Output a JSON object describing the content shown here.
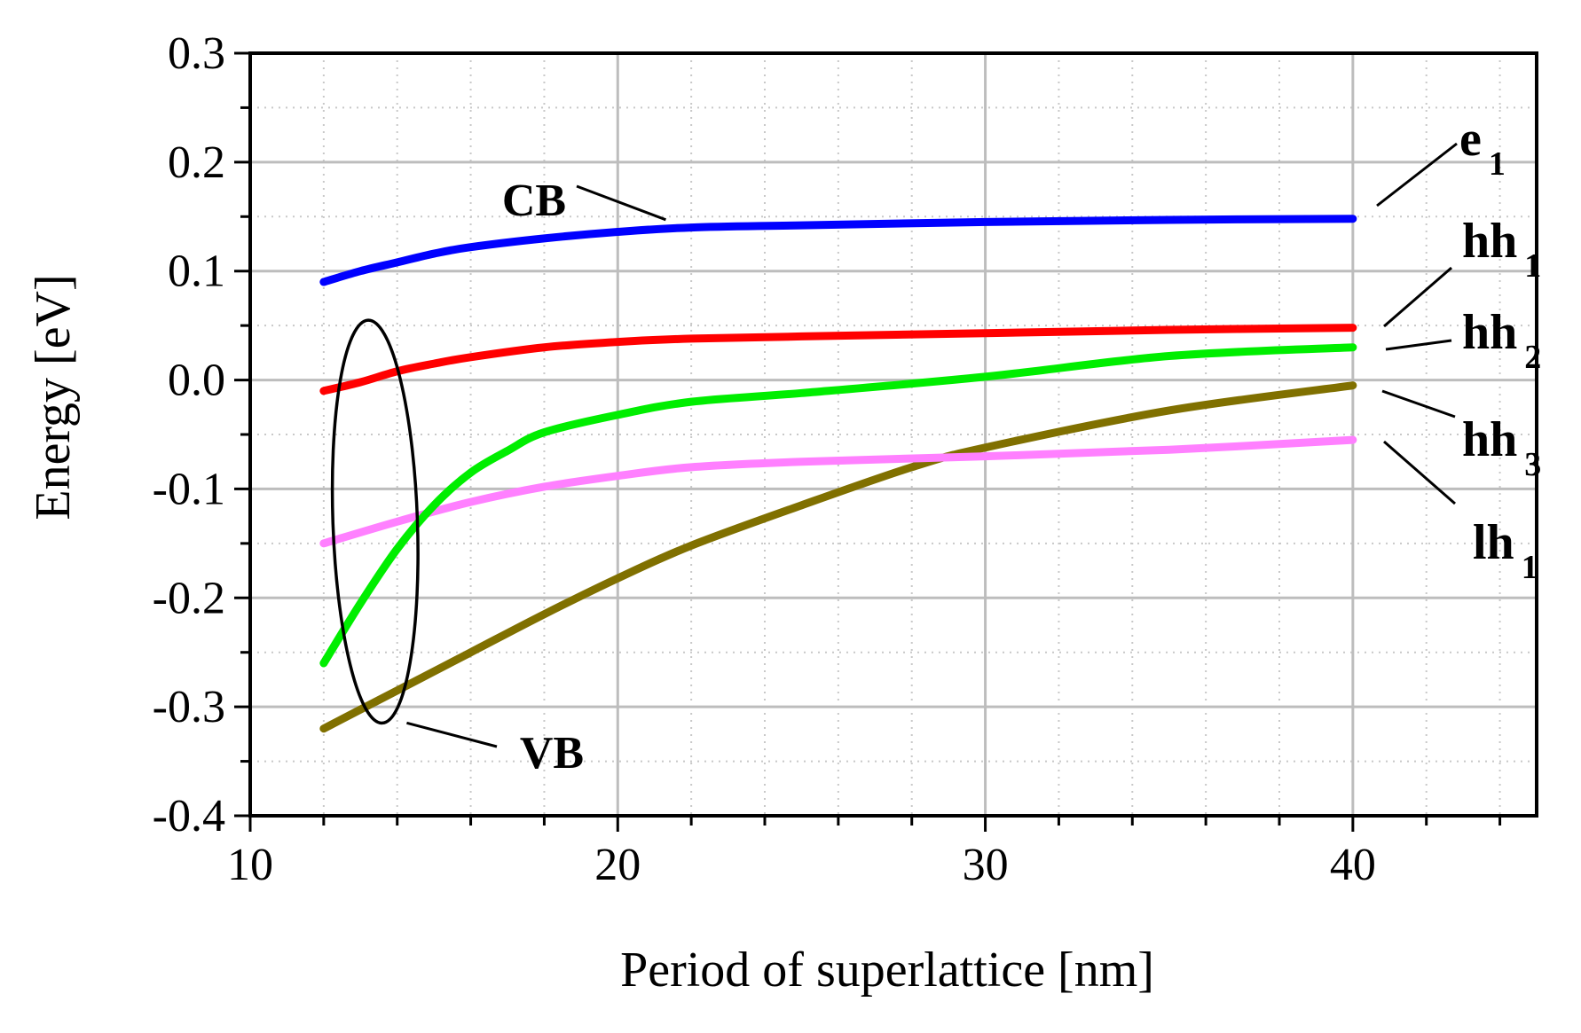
{
  "chart_data": {
    "type": "line",
    "title": "",
    "xlabel": "Period of superlattice [nm]",
    "ylabel": "Energy [eV]",
    "xlim": [
      10,
      45
    ],
    "ylim": [
      -0.4,
      0.3
    ],
    "x_ticks": [
      10,
      20,
      30,
      40
    ],
    "y_ticks": [
      0.3,
      0.2,
      0.1,
      0.0,
      -0.1,
      -0.2,
      -0.3,
      -0.4
    ],
    "x_tick_labels": [
      "10",
      "20",
      "30",
      "40"
    ],
    "y_tick_labels": [
      "0.3",
      "0.2",
      "0.1",
      "0.0",
      "-0.1",
      "-0.2",
      "-0.3",
      "-0.4"
    ],
    "grid": true,
    "series": [
      {
        "name": "e1",
        "label_main": "e",
        "label_sub": "1",
        "color": "#0000ff",
        "x": [
          12,
          13,
          14,
          15,
          16,
          18,
          20,
          22,
          25,
          30,
          35,
          40
        ],
        "y": [
          0.09,
          0.1,
          0.108,
          0.116,
          0.122,
          0.13,
          0.136,
          0.14,
          0.142,
          0.145,
          0.147,
          0.148
        ]
      },
      {
        "name": "hh1",
        "label_main": "hh",
        "label_sub": "1",
        "color": "#ff0000",
        "x": [
          12,
          13,
          14,
          15,
          16,
          18,
          20,
          22,
          25,
          30,
          35,
          40
        ],
        "y": [
          -0.01,
          -0.002,
          0.008,
          0.015,
          0.021,
          0.03,
          0.035,
          0.038,
          0.04,
          0.043,
          0.046,
          0.048
        ]
      },
      {
        "name": "hh2",
        "label_main": "hh",
        "label_sub": "2",
        "color": "#00ee00",
        "x": [
          12,
          13,
          14,
          15,
          16,
          17,
          18,
          20,
          22,
          25,
          30,
          35,
          40
        ],
        "y": [
          -0.26,
          -0.205,
          -0.155,
          -0.115,
          -0.085,
          -0.065,
          -0.048,
          -0.032,
          -0.02,
          -0.012,
          0.003,
          0.022,
          0.03
        ]
      },
      {
        "name": "hh3",
        "label_main": "hh",
        "label_sub": "3",
        "color": "#807000",
        "x": [
          12,
          14,
          16,
          18,
          20,
          22,
          25,
          28,
          30,
          35,
          40
        ],
        "y": [
          -0.32,
          -0.285,
          -0.25,
          -0.215,
          -0.182,
          -0.152,
          -0.115,
          -0.08,
          -0.062,
          -0.028,
          -0.005
        ]
      },
      {
        "name": "lh1",
        "label_main": "lh",
        "label_sub": "1",
        "color": "#ff80ff",
        "x": [
          12,
          14,
          16,
          18,
          20,
          22,
          25,
          30,
          35,
          40
        ],
        "y": [
          -0.15,
          -0.13,
          -0.112,
          -0.098,
          -0.088,
          -0.08,
          -0.075,
          -0.07,
          -0.064,
          -0.055
        ]
      }
    ],
    "annotations": [
      {
        "text": "CB",
        "target_x": 21.5,
        "target_y": 0.152
      },
      {
        "text": "VB",
        "target_x": 14.5,
        "target_y": -0.305
      }
    ],
    "vb_ellipse": {
      "cx": 13.4,
      "cy": -0.13,
      "rx": 1.15,
      "ry": 0.185
    }
  }
}
